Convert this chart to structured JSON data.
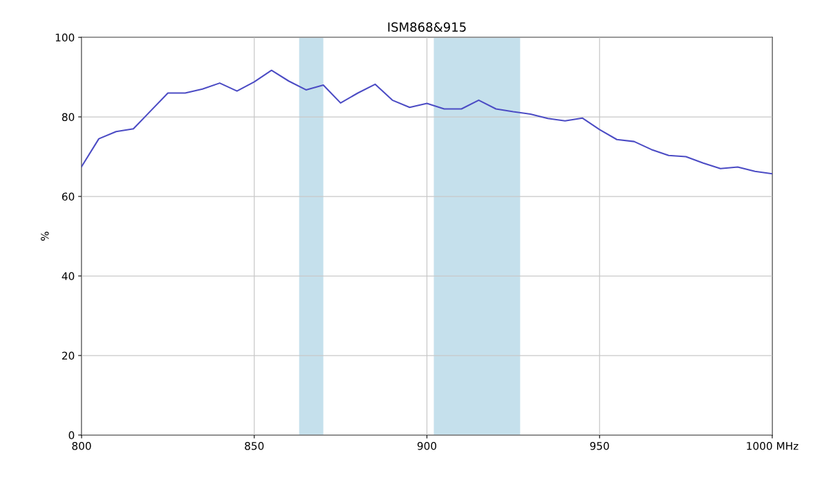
{
  "chart_data": {
    "type": "line",
    "title": "ISM868&915",
    "ylabel": "%",
    "x": [
      800,
      805,
      810,
      815,
      820,
      825,
      830,
      835,
      840,
      845,
      850,
      855,
      860,
      865,
      870,
      875,
      880,
      885,
      890,
      895,
      900,
      905,
      910,
      915,
      920,
      925,
      930,
      935,
      940,
      945,
      950,
      955,
      960,
      965,
      970,
      975,
      980,
      985,
      990,
      995,
      1000
    ],
    "series": [
      {
        "color": "#4b4bc4",
        "values": [
          67.5,
          74.5,
          76.3,
          77,
          81.5,
          86,
          86,
          87,
          88.5,
          86.5,
          88.8,
          91.7,
          89,
          86.8,
          88,
          83.5,
          86,
          88.2,
          84.2,
          82.4,
          83.4,
          82,
          82,
          84.2,
          82,
          81.3,
          80.7,
          79.6,
          79,
          79.7,
          76.8,
          74.3,
          73.8,
          71.8,
          70.3,
          70,
          68.4,
          67,
          67.4,
          66.3,
          65.7
        ]
      }
    ],
    "xlim": [
      800,
      1000
    ],
    "ylim": [
      0,
      100
    ],
    "xticks": [
      800,
      850,
      900,
      950,
      {
        "value": 1000,
        "label": "1000 MHz"
      }
    ],
    "yticks": [
      0,
      20,
      40,
      60,
      80,
      100
    ],
    "bands": [
      {
        "axis": "x",
        "from": 863,
        "to": 870,
        "color": "#c5e0ec"
      },
      {
        "axis": "x",
        "from": 902,
        "to": 927,
        "color": "#c5e0ec"
      }
    ],
    "grid": true,
    "legend": false,
    "marker": "none",
    "line_style": "solid"
  }
}
